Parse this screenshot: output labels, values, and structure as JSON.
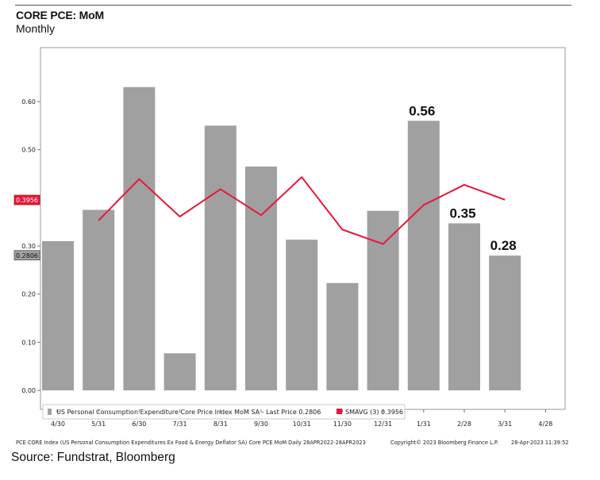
{
  "header": {
    "title": "CORE PCE: MoM",
    "subtitle": "Monthly"
  },
  "chart_data": {
    "type": "bar",
    "categories": [
      "4/30",
      "5/31",
      "6/30",
      "7/31",
      "8/31",
      "9/30",
      "10/31",
      "11/30",
      "12/31",
      "1/31",
      "2/28",
      "3/31",
      "4/28"
    ],
    "series": [
      {
        "name": "US Personal Consumption Expenditure Core Price Index MoM SA - Last Price 0.2806",
        "type": "bar",
        "color": "#a0a0a0",
        "values": [
          0.31,
          0.375,
          0.63,
          0.077,
          0.55,
          0.465,
          0.313,
          0.223,
          0.373,
          0.56,
          0.347,
          0.28,
          null
        ]
      },
      {
        "name": "SMAVG (3) 0.3956",
        "type": "line",
        "color": "#e8173a",
        "values": [
          null,
          0.353,
          0.439,
          0.361,
          0.418,
          0.364,
          0.443,
          0.334,
          0.304,
          0.385,
          0.427,
          0.396,
          null
        ]
      }
    ],
    "data_labels": [
      {
        "index": 9,
        "text": "0.56"
      },
      {
        "index": 10,
        "text": "0.35"
      },
      {
        "index": 11,
        "text": "0.28"
      }
    ],
    "last_value_tags": [
      {
        "value": 0.3956,
        "text": "0.3956",
        "color": "#e8173a"
      },
      {
        "value": 0.2806,
        "text": "0.2806",
        "color": "#a0a0a0"
      }
    ],
    "yticks": [
      0.0,
      0.1,
      0.2,
      0.3,
      0.5,
      0.6
    ],
    "ytick_labels": [
      "0.00",
      "0.10",
      "0.20",
      "0.30",
      "0.50",
      "0.60"
    ],
    "ylim": [
      0,
      0.7
    ],
    "xlabel": "",
    "ylabel": "",
    "grid": false,
    "legend_position": "bottom-left"
  },
  "footer": {
    "description": "PCE CORE Index (US Personal Consumption Expenditures Ex Food & Energy Deflator SA) Core PCE MoM  Daily 28APR2022-28APR2023",
    "copyright": "Copyright© 2023 Bloomberg Finance L.P.",
    "timestamp": "28-Apr-2023 11:39:52",
    "source": "Source: Fundstrat, Bloomberg"
  }
}
